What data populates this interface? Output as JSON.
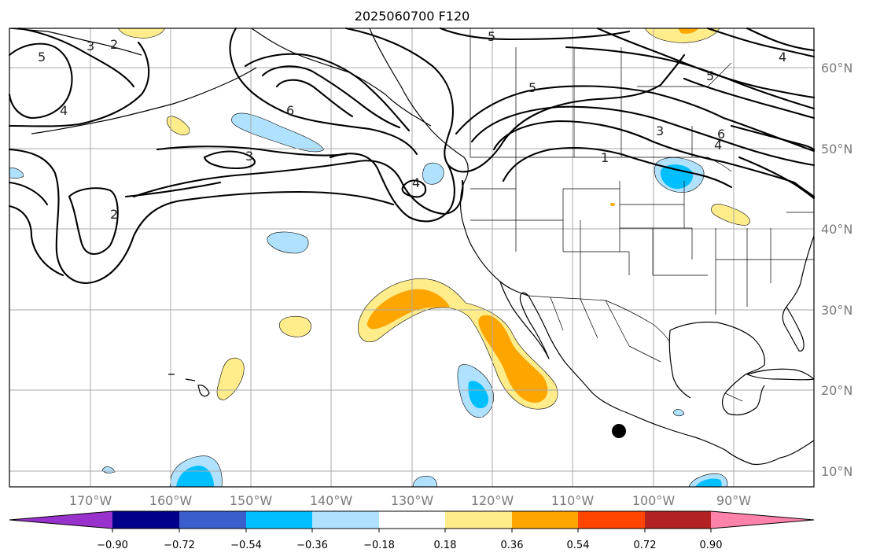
{
  "title": "2025060700 F120",
  "lon_labels": [
    "170°W",
    "160°W",
    "150°W",
    "140°W",
    "130°W",
    "120°W",
    "110°W",
    "100°W",
    "90°W"
  ],
  "lat_labels": [
    "60°N",
    "50°N",
    "40°N",
    "30°N",
    "20°N",
    "10°N"
  ],
  "colorbar": {
    "ticks": [
      "−0.90",
      "−0.72",
      "−0.54",
      "−0.36",
      "−0.18",
      "0.18",
      "0.36",
      "0.54",
      "0.72",
      "0.90"
    ],
    "colors": [
      "#9932cc",
      "#00008b",
      "#3a5fcd",
      "#00bfff",
      "#b0e2ff",
      "#ffffff",
      "#ffec8b",
      "#ffa500",
      "#ff4500",
      "#b22222",
      "#ff82ab"
    ]
  },
  "contour_labels": [
    "5",
    "3",
    "2",
    "4",
    "6",
    "3",
    "4",
    "2",
    "5",
    "5",
    "1",
    "3",
    "6",
    "4",
    "5",
    "4"
  ],
  "marker": "storm-center-dot"
}
